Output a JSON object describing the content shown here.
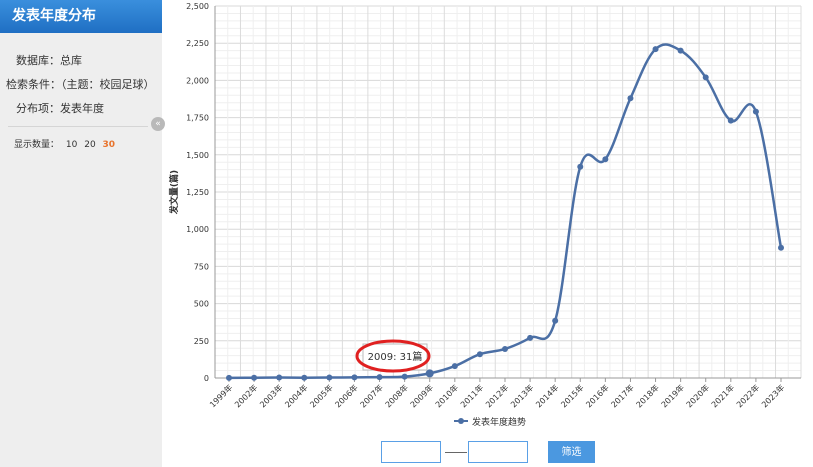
{
  "sidebar": {
    "title": "发表年度分布",
    "database_label": "数据库：总库",
    "condition_label": "检索条件：（主题：校园足球）",
    "distribution_label": "分布项：发表年度",
    "collapse_glyph": "«",
    "count": {
      "label": "显示数量：",
      "options": [
        "10",
        "20",
        "30"
      ],
      "selected": "30"
    }
  },
  "chart_data": {
    "type": "line",
    "x": [
      "1999年",
      "2002年",
      "2003年",
      "2004年",
      "2005年",
      "2006年",
      "2007年",
      "2008年",
      "2009年",
      "2010年",
      "2011年",
      "2012年",
      "2013年",
      "2014年",
      "2015年",
      "2016年",
      "2017年",
      "2018年",
      "2019年",
      "2020年",
      "2021年",
      "2022年",
      "2023年"
    ],
    "series": [
      {
        "name": "发表年度趋势",
        "values": [
          1,
          2,
          3,
          2,
          3,
          4,
          6,
          9,
          31,
          80,
          160,
          195,
          270,
          385,
          1420,
          1470,
          1880,
          2210,
          2200,
          2020,
          1730,
          1790,
          875
        ],
        "color": "#4b6fa5"
      }
    ],
    "ylabel": "发文量(篇)",
    "ylim": [
      0,
      2500
    ],
    "yticks": [
      "0",
      "250",
      "500",
      "750",
      "1,000",
      "1,250",
      "1,500",
      "1,750",
      "2,000",
      "2,250",
      "2,500"
    ],
    "grid": true,
    "legend": "bottom",
    "tooltip": {
      "x": "2009",
      "value": 31,
      "text": "2009: 31篇"
    },
    "highlight_color": "#e02020"
  },
  "filter": {
    "from_value": "",
    "to_value": "",
    "button_label": "筛选"
  }
}
